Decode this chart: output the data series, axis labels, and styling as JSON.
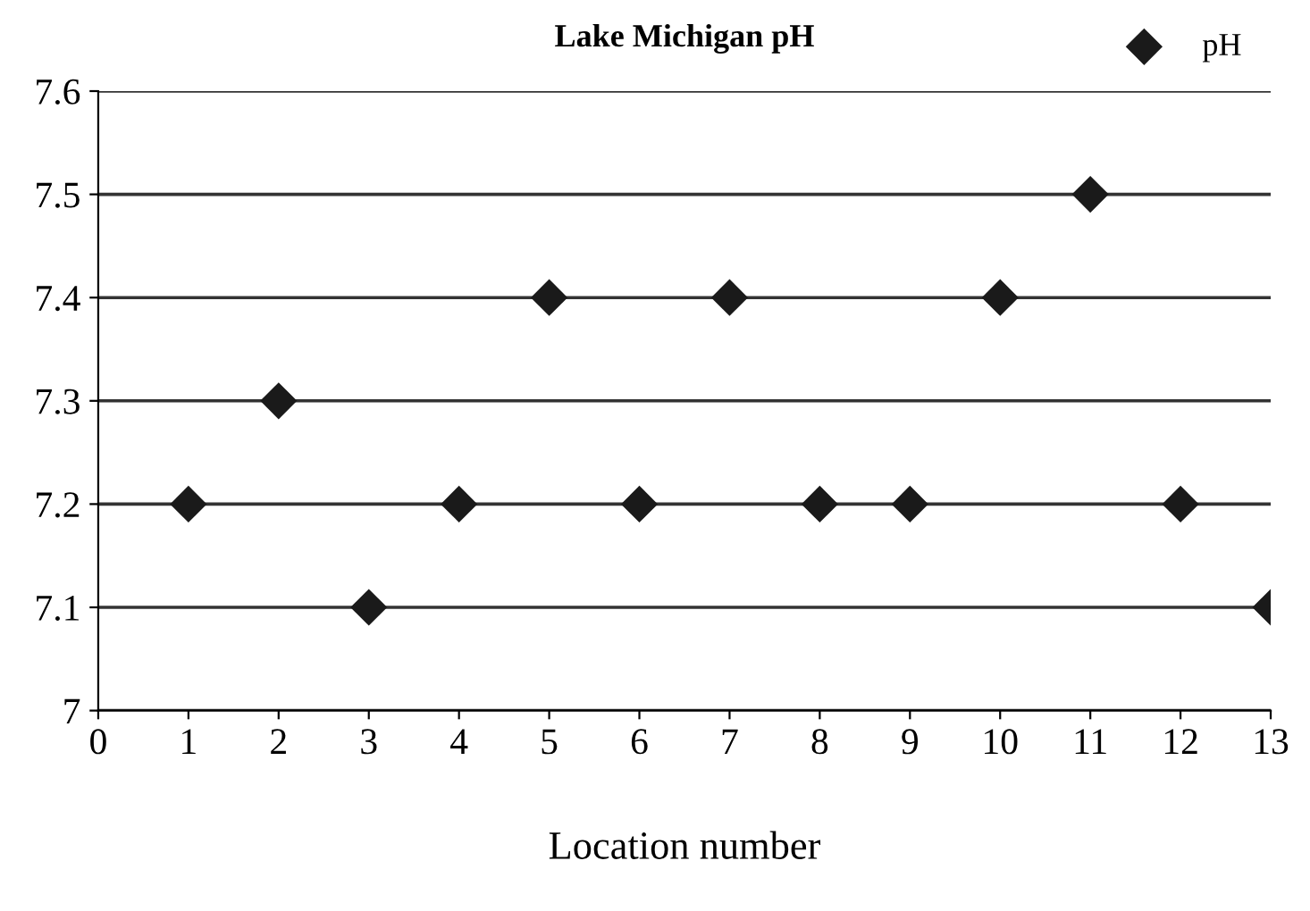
{
  "chart_data": {
    "type": "scatter",
    "title": "Lake Michigan pH",
    "xlabel": "Location number",
    "x": [
      1,
      2,
      3,
      4,
      5,
      6,
      7,
      8,
      9,
      10,
      11,
      12,
      13
    ],
    "series": [
      {
        "name": "pH",
        "color": "#1a1a1a",
        "values": [
          7.2,
          7.3,
          7.1,
          7.2,
          7.4,
          7.2,
          7.4,
          7.2,
          7.2,
          7.4,
          7.5,
          7.2,
          7.1
        ]
      }
    ],
    "xlim": [
      0,
      13
    ],
    "ylim": [
      7,
      7.6
    ],
    "xticks": [
      0,
      1,
      2,
      3,
      4,
      5,
      6,
      7,
      8,
      9,
      10,
      11,
      12,
      13
    ],
    "yticks": [
      7,
      7.1,
      7.2,
      7.3,
      7.4,
      7.5,
      7.6
    ],
    "grid": "y",
    "legend": "top right",
    "marker": "diamond"
  }
}
